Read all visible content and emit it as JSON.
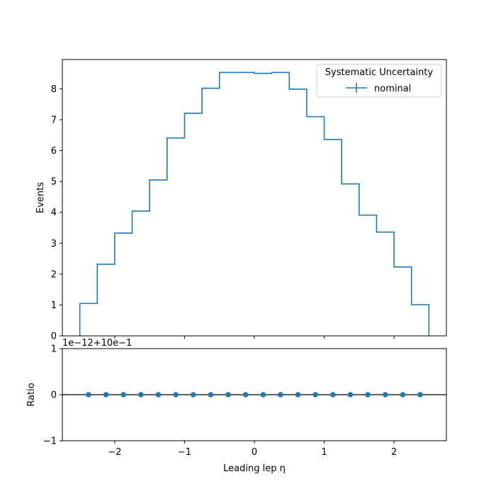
{
  "chart_data": [
    {
      "type": "step",
      "panel": "main",
      "ylabel": "Events",
      "xlim": [
        -2.75,
        2.75
      ],
      "ylim": [
        0,
        8.95
      ],
      "yticks": [
        0,
        1,
        2,
        3,
        4,
        5,
        6,
        7,
        8
      ],
      "bin_edges": [
        -2.5,
        -2.25,
        -2.0,
        -1.75,
        -1.5,
        -1.25,
        -1.0,
        -0.75,
        -0.5,
        -0.25,
        0.0,
        0.25,
        0.5,
        0.75,
        1.0,
        1.25,
        1.5,
        1.75,
        2.0,
        2.25,
        2.5
      ],
      "series": [
        {
          "name": "nominal",
          "color": "#1f77b4",
          "values": [
            1.05,
            2.32,
            3.33,
            4.04,
            5.05,
            6.41,
            7.21,
            8.02,
            8.53,
            8.53,
            8.5,
            8.53,
            7.99,
            7.1,
            6.36,
            4.92,
            3.91,
            3.36,
            2.23,
            1.01
          ]
        }
      ],
      "legend": {
        "title": "Systematic Uncertainty",
        "placement": "upper-right",
        "entries": [
          "nominal"
        ]
      }
    },
    {
      "type": "scatter",
      "panel": "ratio",
      "ylabel": "Ratio",
      "xlabel": "Leading lep η",
      "xlim": [
        -2.75,
        2.75
      ],
      "ylim": [
        -1,
        1
      ],
      "yticks": [
        -1,
        0,
        1
      ],
      "xticks": [
        -2,
        -1,
        0,
        1,
        2
      ],
      "offset_text": "1e−12+10e−1",
      "reference_line": 0,
      "x": [
        -2.375,
        -2.125,
        -1.875,
        -1.625,
        -1.375,
        -1.125,
        -0.875,
        -0.625,
        -0.375,
        -0.125,
        0.125,
        0.375,
        0.625,
        0.875,
        1.125,
        1.375,
        1.625,
        1.875,
        2.125,
        2.375
      ],
      "y": [
        0,
        0,
        0,
        0,
        0,
        0,
        0,
        0,
        0,
        0,
        0,
        0,
        0,
        0,
        0,
        0,
        0,
        0,
        0,
        0
      ],
      "color": "#1f77b4"
    }
  ]
}
